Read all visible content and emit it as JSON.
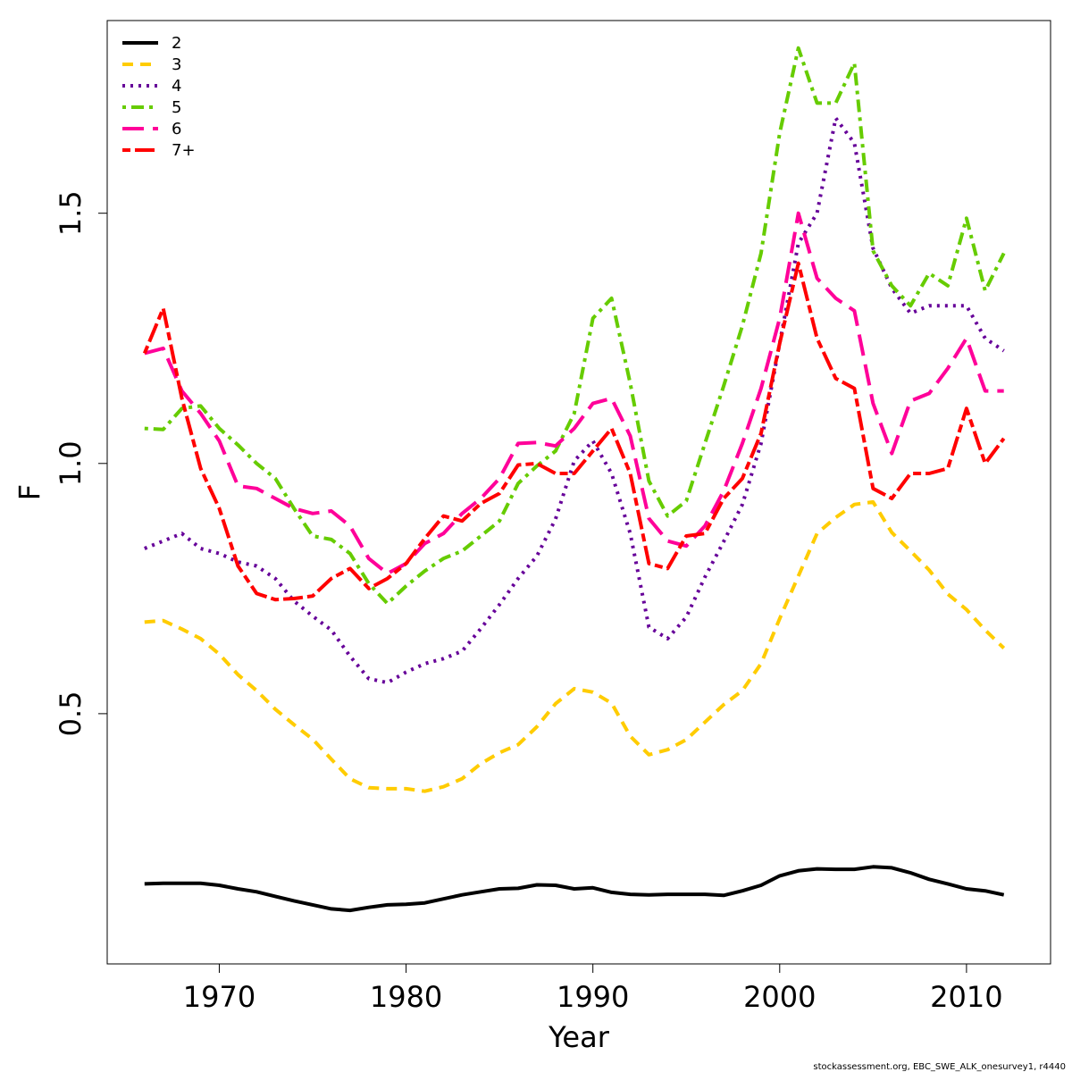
{
  "chart_data": {
    "type": "line",
    "title": "",
    "xlabel": "Year",
    "ylabel": "F",
    "xlim": [
      1964,
      2014.5
    ],
    "ylim": [
      0.0,
      1.885
    ],
    "x_ticks": [
      1970,
      1980,
      1990,
      2000,
      2010
    ],
    "x_tick_labels": [
      "1970",
      "1980",
      "1990",
      "2000",
      "2010"
    ],
    "y_ticks": [
      0.5,
      1.0,
      1.5
    ],
    "y_tick_labels": [
      "0.5",
      "1.0",
      "1.5"
    ],
    "grid": false,
    "legend_position": "top-left",
    "x": [
      1966,
      1967,
      1968,
      1969,
      1970,
      1971,
      1972,
      1973,
      1974,
      1975,
      1976,
      1977,
      1978,
      1979,
      1980,
      1981,
      1982,
      1983,
      1984,
      1985,
      1986,
      1987,
      1988,
      1989,
      1990,
      1991,
      1992,
      1993,
      1994,
      1995,
      1996,
      1997,
      1998,
      1999,
      2000,
      2001,
      2002,
      2003,
      2004,
      2005,
      2006,
      2007,
      2008,
      2009,
      2010,
      2011,
      2012
    ],
    "series": [
      {
        "name": "2",
        "color": "#000000",
        "dash": "solid",
        "values": [
          0.16,
          0.161,
          0.161,
          0.161,
          0.157,
          0.15,
          0.144,
          0.135,
          0.126,
          0.118,
          0.11,
          0.107,
          0.113,
          0.118,
          0.119,
          0.122,
          0.13,
          0.138,
          0.144,
          0.15,
          0.151,
          0.158,
          0.157,
          0.15,
          0.152,
          0.143,
          0.139,
          0.138,
          0.139,
          0.139,
          0.139,
          0.137,
          0.146,
          0.157,
          0.176,
          0.186,
          0.19,
          0.189,
          0.189,
          0.194,
          0.192,
          0.182,
          0.169,
          0.16,
          0.15,
          0.146,
          0.138
        ]
      },
      {
        "name": "3",
        "color": "#ffcc00",
        "dash": "dashed",
        "values": [
          0.683,
          0.686,
          0.669,
          0.65,
          0.619,
          0.578,
          0.546,
          0.509,
          0.478,
          0.449,
          0.409,
          0.37,
          0.352,
          0.35,
          0.35,
          0.345,
          0.354,
          0.37,
          0.4,
          0.422,
          0.438,
          0.474,
          0.52,
          0.55,
          0.543,
          0.521,
          0.455,
          0.418,
          0.428,
          0.448,
          0.483,
          0.518,
          0.546,
          0.6,
          0.69,
          0.775,
          0.86,
          0.892,
          0.918,
          0.923,
          0.862,
          0.825,
          0.787,
          0.739,
          0.708,
          0.667,
          0.631
        ]
      },
      {
        "name": "4",
        "color": "#660099",
        "dash": "dotted",
        "values": [
          0.83,
          0.845,
          0.86,
          0.83,
          0.82,
          0.803,
          0.795,
          0.77,
          0.725,
          0.695,
          0.667,
          0.615,
          0.57,
          0.562,
          0.583,
          0.6,
          0.61,
          0.625,
          0.67,
          0.718,
          0.77,
          0.815,
          0.889,
          1.005,
          1.045,
          0.98,
          0.86,
          0.673,
          0.65,
          0.693,
          0.773,
          0.844,
          0.918,
          1.04,
          1.24,
          1.44,
          1.5,
          1.69,
          1.64,
          1.43,
          1.35,
          1.3,
          1.315,
          1.315,
          1.315,
          1.25,
          1.225
        ]
      },
      {
        "name": "5",
        "color": "#66cc00",
        "dash": "dashdot",
        "values": [
          1.07,
          1.068,
          1.11,
          1.115,
          1.07,
          1.037,
          1.0,
          0.97,
          0.91,
          0.855,
          0.848,
          0.82,
          0.76,
          0.72,
          0.755,
          0.785,
          0.81,
          0.825,
          0.855,
          0.885,
          0.96,
          0.995,
          1.025,
          1.1,
          1.29,
          1.33,
          1.16,
          0.965,
          0.895,
          0.925,
          1.04,
          1.155,
          1.275,
          1.42,
          1.66,
          1.83,
          1.72,
          1.72,
          1.8,
          1.425,
          1.355,
          1.315,
          1.38,
          1.355,
          1.49,
          1.345,
          1.42
        ]
      },
      {
        "name": "6",
        "color": "#ff0099",
        "dash": "longdash",
        "values": [
          1.22,
          1.23,
          1.145,
          1.1,
          1.045,
          0.955,
          0.95,
          0.93,
          0.91,
          0.9,
          0.905,
          0.875,
          0.81,
          0.78,
          0.8,
          0.84,
          0.86,
          0.9,
          0.93,
          0.97,
          1.04,
          1.042,
          1.035,
          1.07,
          1.12,
          1.13,
          1.055,
          0.89,
          0.845,
          0.835,
          0.875,
          0.945,
          1.04,
          1.15,
          1.29,
          1.5,
          1.37,
          1.33,
          1.305,
          1.12,
          1.02,
          1.125,
          1.14,
          1.19,
          1.25,
          1.145,
          1.145
        ]
      },
      {
        "name": "7+",
        "color": "#ff0000",
        "dash": "twodash",
        "values": [
          1.22,
          1.31,
          1.13,
          0.99,
          0.91,
          0.795,
          0.74,
          0.728,
          0.73,
          0.735,
          0.77,
          0.79,
          0.75,
          0.77,
          0.8,
          0.85,
          0.895,
          0.885,
          0.92,
          0.94,
          0.997,
          1.0,
          0.98,
          0.98,
          1.025,
          1.07,
          0.98,
          0.8,
          0.79,
          0.855,
          0.86,
          0.93,
          0.97,
          1.06,
          1.24,
          1.4,
          1.25,
          1.17,
          1.15,
          0.95,
          0.93,
          0.98,
          0.98,
          0.99,
          1.11,
          1.0,
          1.05
        ]
      }
    ]
  },
  "footer": "stockassessment.org, EBC_SWE_ALK_onesurvey1, r4440"
}
